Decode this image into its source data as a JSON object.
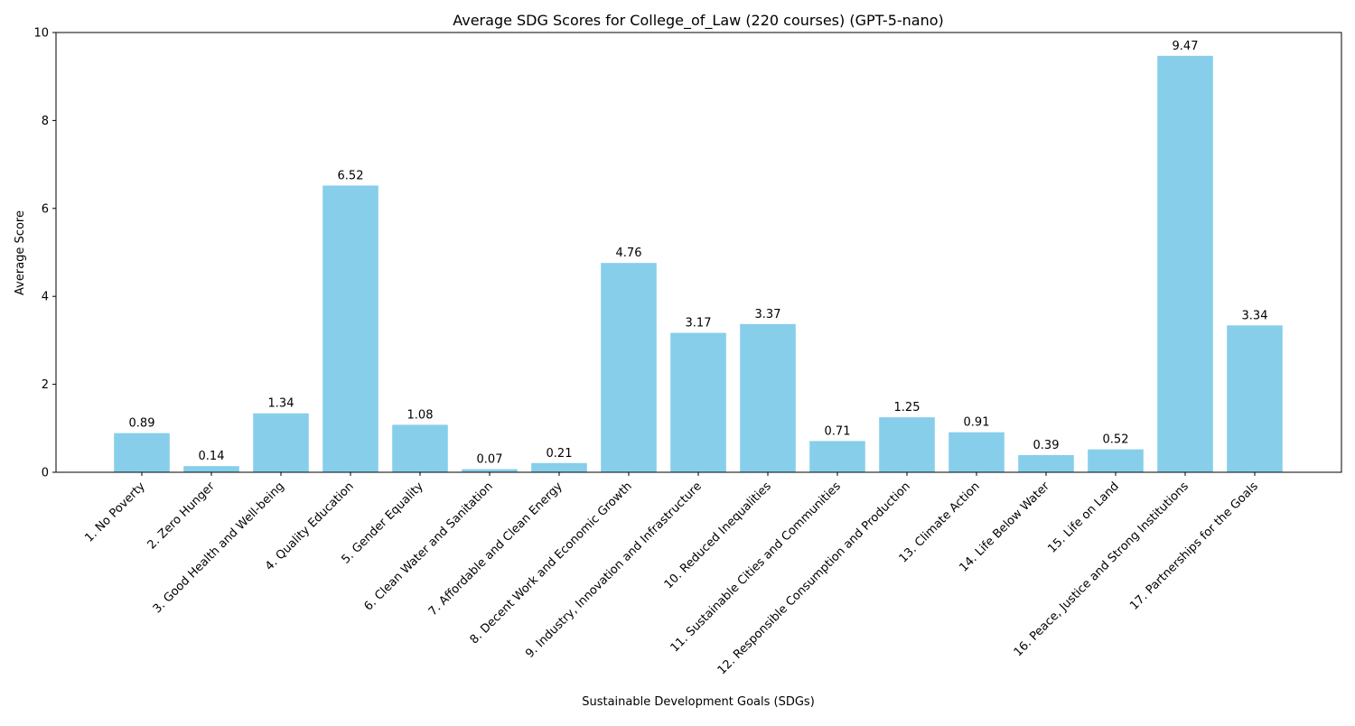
{
  "chart_data": {
    "type": "bar",
    "title": "Average SDG Scores for College_of_Law (220 courses) (GPT-5-nano)",
    "xlabel": "Sustainable Development Goals (SDGs)",
    "ylabel": "Average Score",
    "ylim": [
      0,
      10
    ],
    "yticks": [
      0,
      2,
      4,
      6,
      8,
      10
    ],
    "grid": false,
    "bar_color": "#87ceeb",
    "categories": [
      "1. No Poverty",
      "2. Zero Hunger",
      "3. Good Health and Well-being",
      "4. Quality Education",
      "5. Gender Equality",
      "6. Clean Water and Sanitation",
      "7. Affordable and Clean Energy",
      "8. Decent Work and Economic Growth",
      "9. Industry, Innovation and Infrastructure",
      "10. Reduced Inequalities",
      "11. Sustainable Cities and Communities",
      "12. Responsible Consumption and Production",
      "13. Climate Action",
      "14. Life Below Water",
      "15. Life on Land",
      "16. Peace, Justice and Strong Institutions",
      "17. Partnerships for the Goals"
    ],
    "values": [
      0.89,
      0.14,
      1.34,
      6.52,
      1.08,
      0.07,
      0.21,
      4.76,
      3.17,
      3.37,
      0.71,
      1.25,
      0.91,
      0.39,
      0.52,
      9.47,
      3.34
    ],
    "value_labels": [
      "0.89",
      "0.14",
      "1.34",
      "6.52",
      "1.08",
      "0.07",
      "0.21",
      "4.76",
      "3.17",
      "3.37",
      "0.71",
      "1.25",
      "0.91",
      "0.39",
      "0.52",
      "9.47",
      "3.34"
    ]
  }
}
